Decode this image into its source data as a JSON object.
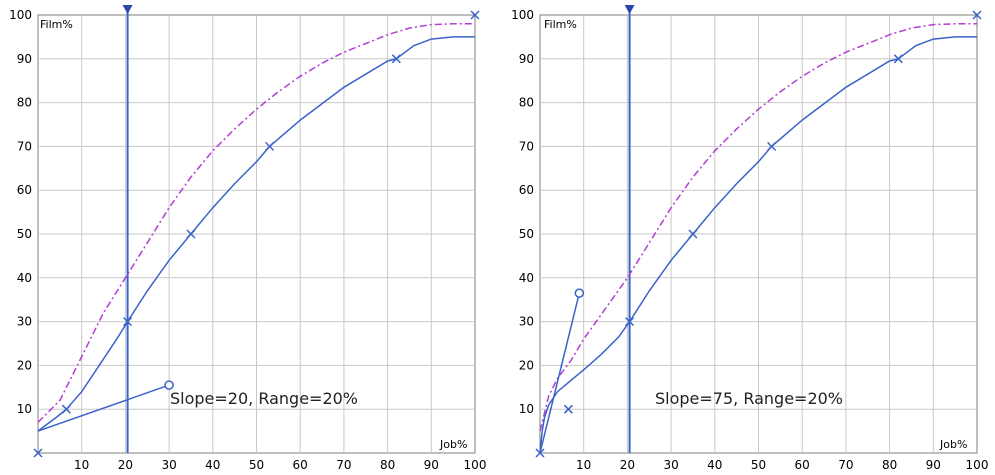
{
  "chart_data": [
    {
      "type": "line",
      "xlabel": "Job%",
      "ylabel": "Film%",
      "xlim": [
        0,
        100
      ],
      "ylim": [
        0,
        100
      ],
      "x_ticks": [
        "10",
        "20",
        "30",
        "40",
        "50",
        "60",
        "70",
        "80",
        "90",
        "100"
      ],
      "y_ticks": [
        "10",
        "20",
        "30",
        "40",
        "50",
        "60",
        "70",
        "80",
        "90",
        "100"
      ],
      "grid": true,
      "annotation": "Slope=20, Range=20%",
      "marker_line_x": 20.5,
      "series": [
        {
          "style": "solid",
          "color": "#3a63c8",
          "x": [
            0,
            2,
            4,
            6.5,
            10,
            14,
            18,
            20.5,
            25,
            30,
            35,
            40,
            45,
            50,
            53,
            60,
            70,
            80,
            82,
            86,
            90,
            95,
            100
          ],
          "y": [
            5,
            6.5,
            8,
            10,
            14,
            20,
            26,
            30,
            37,
            44,
            50,
            56,
            61.5,
            66.5,
            70,
            76,
            83.5,
            89.5,
            90,
            93,
            94.5,
            95,
            95
          ]
        },
        {
          "style": "dash-dot",
          "color": "#b33dd6",
          "x": [
            0,
            5,
            10,
            15,
            20,
            25,
            30,
            35,
            40,
            45,
            50,
            55,
            60,
            65,
            70,
            75,
            80,
            85,
            90,
            95,
            100
          ],
          "y": [
            7,
            12,
            22,
            32,
            40,
            48,
            56,
            63,
            69,
            74,
            78.5,
            82.5,
            86,
            89,
            91.5,
            93.5,
            95.5,
            97,
            97.8,
            98,
            98
          ]
        },
        {
          "style": "handle",
          "color": "#3a63c8",
          "x": [
            0,
            30
          ],
          "y": [
            5,
            15.5
          ]
        }
      ],
      "x_markers": [
        {
          "x": 0,
          "y": 0
        },
        {
          "x": 6.5,
          "y": 10
        },
        {
          "x": 20.5,
          "y": 30
        },
        {
          "x": 35,
          "y": 50
        },
        {
          "x": 53,
          "y": 70
        },
        {
          "x": 82,
          "y": 90
        },
        {
          "x": 100,
          "y": 100
        }
      ],
      "handle_point": {
        "x": 30,
        "y": 15.5
      }
    },
    {
      "type": "line",
      "xlabel": "Job%",
      "ylabel": "Film%",
      "xlim": [
        0,
        100
      ],
      "ylim": [
        0,
        100
      ],
      "x_ticks": [
        "10",
        "20",
        "30",
        "40",
        "50",
        "60",
        "70",
        "80",
        "90",
        "100"
      ],
      "y_ticks": [
        "10",
        "20",
        "30",
        "40",
        "50",
        "60",
        "70",
        "80",
        "90",
        "100"
      ],
      "grid": true,
      "annotation": "Slope=75, Range=20%",
      "marker_line_x": 20.5,
      "series": [
        {
          "style": "solid",
          "color": "#3a63c8",
          "x": [
            0,
            0.5,
            1,
            2,
            4,
            7,
            10,
            14,
            18,
            20.5,
            25,
            30,
            35,
            40,
            45,
            50,
            53,
            60,
            70,
            80,
            82,
            86,
            90,
            95,
            100
          ],
          "y": [
            0,
            5,
            8,
            11,
            14,
            16.5,
            19,
            22.5,
            26.5,
            30,
            37,
            44,
            50,
            56,
            61.5,
            66.5,
            70,
            76,
            83.5,
            89.5,
            90,
            93,
            94.5,
            95,
            95
          ]
        },
        {
          "style": "dash-dot",
          "color": "#b33dd6",
          "x": [
            0,
            1,
            2,
            4,
            7,
            10,
            15,
            20,
            25,
            30,
            35,
            40,
            45,
            50,
            55,
            60,
            65,
            70,
            75,
            80,
            85,
            90,
            95,
            100
          ],
          "y": [
            5,
            9,
            13,
            17,
            21,
            26,
            33,
            40,
            48,
            56,
            63,
            69,
            74,
            78.5,
            82.5,
            86,
            89,
            91.5,
            93.5,
            95.5,
            97,
            97.8,
            98,
            98
          ]
        },
        {
          "style": "handle",
          "color": "#3a63c8",
          "x": [
            0,
            9
          ],
          "y": [
            0,
            36.5
          ]
        }
      ],
      "x_markers": [
        {
          "x": 0,
          "y": 0
        },
        {
          "x": 6.5,
          "y": 10
        },
        {
          "x": 20.5,
          "y": 30
        },
        {
          "x": 35,
          "y": 50
        },
        {
          "x": 53,
          "y": 70
        },
        {
          "x": 82,
          "y": 90
        },
        {
          "x": 100,
          "y": 100
        }
      ],
      "handle_point": {
        "x": 9,
        "y": 36.5
      }
    }
  ]
}
